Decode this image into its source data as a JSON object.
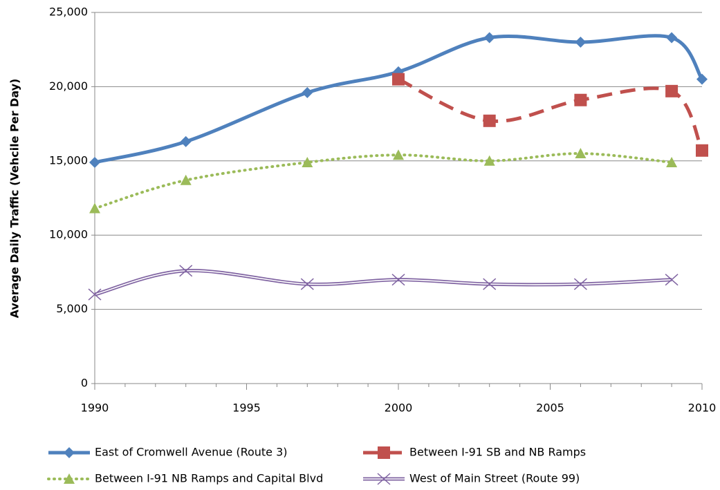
{
  "chart_data": {
    "type": "line",
    "y_label": "Average Daily Traffic (Vehcile Per Day)",
    "x": [
      1990,
      1993,
      1997,
      2000,
      2003,
      2006,
      2009,
      2010
    ],
    "series": [
      {
        "name": "East of Cromwell Avenue (Route 3)",
        "color": "#4f81bd",
        "marker": "diamond",
        "dash": "solid",
        "values": [
          14900,
          16300,
          19600,
          21000,
          23300,
          23000,
          23300,
          20500
        ]
      },
      {
        "name": "Between I-91 SB and NB Ramps",
        "color": "#c0504d",
        "marker": "square",
        "dash": "dashed",
        "values": [
          null,
          null,
          null,
          20500,
          17700,
          19100,
          19700,
          15700
        ]
      },
      {
        "name": "Between I-91 NB Ramps and Capital Blvd",
        "color": "#9bbb59",
        "marker": "triangle",
        "dash": "dotted",
        "values": [
          11800,
          13700,
          14900,
          15400,
          15000,
          15500,
          14900,
          null
        ]
      },
      {
        "name": "West of Main Street (Route 99)",
        "color": "#8064a2",
        "marker": "x",
        "dash": "double",
        "values": [
          6000,
          7600,
          6700,
          7000,
          6700,
          6700,
          7000,
          null
        ]
      }
    ],
    "xlim": [
      1990,
      2010
    ],
    "xticks": [
      1990,
      1995,
      2000,
      2005,
      2010
    ],
    "ylim": [
      0,
      25000
    ],
    "yticks": [
      0,
      {
        "value": 5000,
        "label": "5,000"
      },
      {
        "value": 10000,
        "label": "10,000"
      },
      {
        "value": 15000,
        "label": "15,000"
      },
      {
        "value": 20000,
        "label": "20,000"
      },
      {
        "value": 25000,
        "label": "25,000"
      }
    ],
    "grid": true,
    "legend": "bottom",
    "smooth": true
  }
}
